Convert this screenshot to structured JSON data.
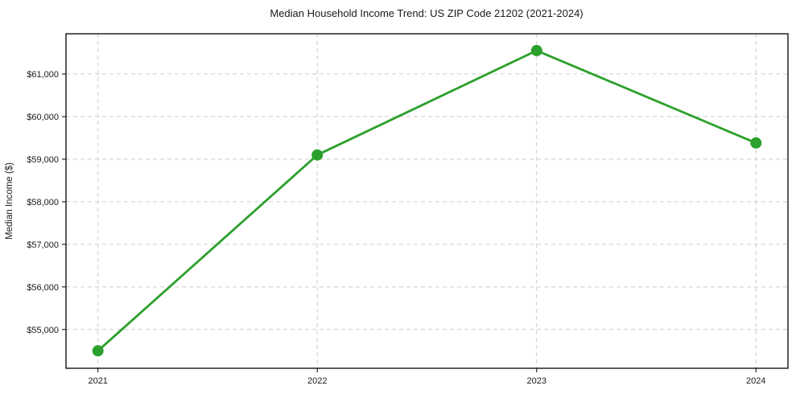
{
  "figure": {
    "title": "Median Household Income Trend: US ZIP Code 21202 (2021-2024)"
  },
  "chart_data": {
    "type": "line",
    "title": "Median Household Income Trend: US ZIP Code 21202 (2021-2024)",
    "xlabel": "",
    "ylabel": "Median Income ($)",
    "categories": [
      "2021",
      "2022",
      "2023",
      "2024"
    ],
    "values": [
      54500,
      59100,
      61550,
      59380
    ],
    "yticks": [
      55000,
      56000,
      57000,
      58000,
      59000,
      60000,
      61000
    ],
    "ytick_labels": [
      "$55,000",
      "$56,000",
      "$57,000",
      "$58,000",
      "$59,000",
      "$60,000",
      "$61,000"
    ],
    "ylim": [
      54090,
      61945
    ],
    "grid": true,
    "grid_style": "dashed",
    "legend_position": "none",
    "colors": {
      "line": "#2ca02c",
      "marker": "#2ca02c",
      "grid": "#cccccc",
      "spine": "#000000",
      "text": "#1a1a1a",
      "background": "#ffffff"
    }
  }
}
